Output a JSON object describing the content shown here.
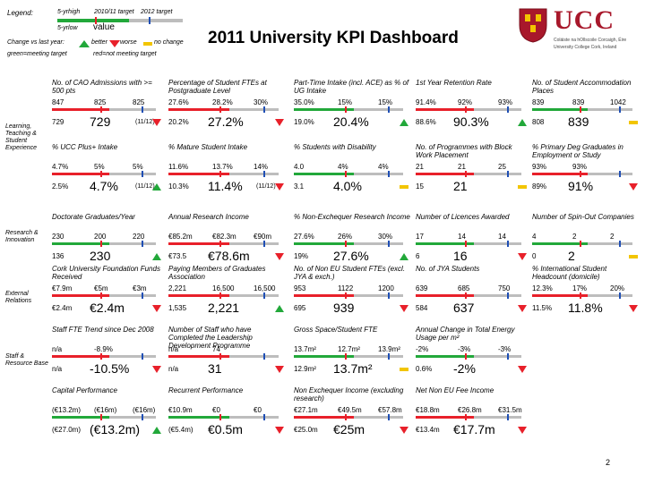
{
  "header": {
    "title": "2011 University KPI Dashboard",
    "page_number": "2"
  },
  "legend": {
    "label": "Legend:",
    "col_yrhigh": "5-yrhigh",
    "col_target1011": "2010/11 target",
    "col_target12": "2012 target",
    "col_yrlow": "5-yrlow",
    "value_label": "value",
    "change_label": "Change vs last year:",
    "better": "better",
    "worse": "worse",
    "nochange": "no change",
    "meeting_line": "green=meeting target",
    "notmeeting_line": "red=not meeting target"
  },
  "logo": {
    "name": "UCC",
    "line1": "Coláiste na hOllscoile Corcaigh, Éire",
    "line2": "University College Cork, Ireland"
  },
  "sections": {
    "learning": "Learning, Teaching & Student Experience",
    "research": "Research & Innovation",
    "external": "External Relations",
    "staff": "Staff & Resource Base"
  },
  "kpis": {
    "cao": {
      "title": "No. of CAO Admissions with >= 500 pts",
      "high": "847",
      "t1": "825",
      "t2": "825",
      "low": "729",
      "value": "729",
      "note": "(11/12)"
    },
    "postgrad": {
      "title": "Percentage of Student FTEs at Postgraduate Level",
      "high": "27.6%",
      "t1": "28.2%",
      "t2": "30%",
      "low": "20.2%",
      "value": "27.2%"
    },
    "parttime": {
      "title": "Part-Time Intake (incl. ACE) as % of UG Intake",
      "high": "35.0%",
      "t1": "15%",
      "t2": "15%",
      "low": "19.0%",
      "value": "20.4%"
    },
    "retention": {
      "title": "1st Year Retention Rate",
      "high": "91.4%",
      "t1": "92%",
      "t2": "93%",
      "low": "88.6%",
      "value": "90.3%"
    },
    "accommodation": {
      "title": "No. of Student Accommodation Places",
      "high": "839",
      "t1": "839",
      "t2": "1042",
      "low": "808",
      "value": "839"
    },
    "plus": {
      "title": "% UCC Plus+ Intake",
      "high": "4.7%",
      "t1": "5%",
      "t2": "5%",
      "low": "2.5%",
      "value": "4.7%",
      "note": "(11/12)"
    },
    "mature": {
      "title": "% Mature Student Intake",
      "high": "11.6%",
      "t1": "13.7%",
      "t2": "14%",
      "low": "10.3%",
      "value": "11.4%",
      "note": "(11/12)"
    },
    "disability": {
      "title": "% Students with Disability",
      "high": "4.0",
      "t1": "4%",
      "t2": "4%",
      "low": "3.1",
      "value": "4.0%"
    },
    "programmes": {
      "title": "No. of Programmes with Block Work Placement",
      "high": "21",
      "t1": "21",
      "t2": "25",
      "low": "15",
      "value": "21"
    },
    "employment": {
      "title": "% Primary Deg Graduates in Employment or Study",
      "high": "93%",
      "t1": "93%",
      "t2": "",
      "low": "89%",
      "value": "91%"
    },
    "doctorate": {
      "title": "Doctorate Graduates/Year",
      "high": "230",
      "t1": "200",
      "t2": "220",
      "low": "136",
      "value": "230"
    },
    "research_income": {
      "title": "Annual Research Income",
      "high": "€85.2m",
      "t1": "€82.3m",
      "t2": "€90m",
      "low": "€73.5",
      "value": "€78.6m"
    },
    "nonexch_research": {
      "title": "% Non-Exchequer Research Income",
      "high": "27.6%",
      "t1": "26%",
      "t2": "30%",
      "low": "19%",
      "value": "27.6%"
    },
    "licences": {
      "title": "Number of Licences Awarded",
      "high": "17",
      "t1": "14",
      "t2": "14",
      "low": "6",
      "value": "16"
    },
    "spinout": {
      "title": "Number of Spin-Out Companies",
      "high": "4",
      "t1": "2",
      "t2": "2",
      "low": "0",
      "value": "2"
    },
    "foundation": {
      "title": "Cork University Foundation Funds Received",
      "high": "€7.9m",
      "t1": "€5m",
      "t2": "€3m",
      "low": "€2.4m",
      "value": "€2.4m"
    },
    "graduates_assoc": {
      "title": "Paying Members of Graduates Association",
      "high": "2,221",
      "t1": "16,500",
      "t2": "16,500",
      "low": "1,535",
      "value": "2,221"
    },
    "noneu": {
      "title": "No. of Non EU Student FTEs (excl. JYA & exch.)",
      "high": "953",
      "t1": "1122",
      "t2": "1200",
      "low": "695",
      "value": "939"
    },
    "jya": {
      "title": "No. of JYA Students",
      "high": "639",
      "t1": "685",
      "t2": "750",
      "low": "584",
      "value": "637"
    },
    "intl_headcount": {
      "title": "% International Student Headcount (domicile)",
      "high": "12.3%",
      "t1": "17%",
      "t2": "20%",
      "low": "11.5%",
      "value": "11.8%"
    },
    "staff_fte": {
      "title": "Staff FTE Trend since Dec 2008",
      "high": "n/a",
      "t1": "-8.9%",
      "t2": "",
      "low": "n/a",
      "value": "-10.5%"
    },
    "leadership": {
      "title": "Number of Staff who have Completed the Leadership Development Programme",
      "high": "n/a",
      "t1": "74",
      "t2": "",
      "low": "n/a",
      "value": "31"
    },
    "gross_space": {
      "title": "Gross Space/Student FTE",
      "high": "13.7m²",
      "t1": "12.7m²",
      "t2": "13.9m²",
      "low": "12.9m²",
      "value": "13.7m²"
    },
    "energy": {
      "title": "Annual Change in Total Energy Usage per m²",
      "high": "-2%",
      "t1": "-3%",
      "t2": "-3%",
      "low": "0.6%",
      "value": "-2%"
    },
    "capital": {
      "title": "Capital Performance",
      "high": "(€13.2m)",
      "t1": "(€16m)",
      "t2": "(€16m)",
      "low": "(€27.0m)",
      "value": "(€13.2m)"
    },
    "recurrent": {
      "title": "Recurrent Performance",
      "high": "€10.9m",
      "t1": "€0",
      "t2": "€0",
      "low": "(€5.4m)",
      "value": "€0.5m"
    },
    "nonexch_income": {
      "title": "Non Exchequer Income (excluding research)",
      "high": "€27.1m",
      "t1": "€49.5m",
      "t2": "€57.8m",
      "low": "€25.0m",
      "value": "€25m"
    },
    "net_noneu_fee": {
      "title": "Net Non EU Fee Income",
      "high": "€18.8m",
      "t1": "€26.8m",
      "t2": "€31.5m",
      "low": "€13.4m",
      "value": "€17.7m"
    }
  },
  "colors": {
    "green": "#22a83a",
    "red": "#e8202a",
    "amber": "#f2c500",
    "blue": "#1f4fb5",
    "gray": "#bdbdbd",
    "logo_red": "#a8182b"
  }
}
